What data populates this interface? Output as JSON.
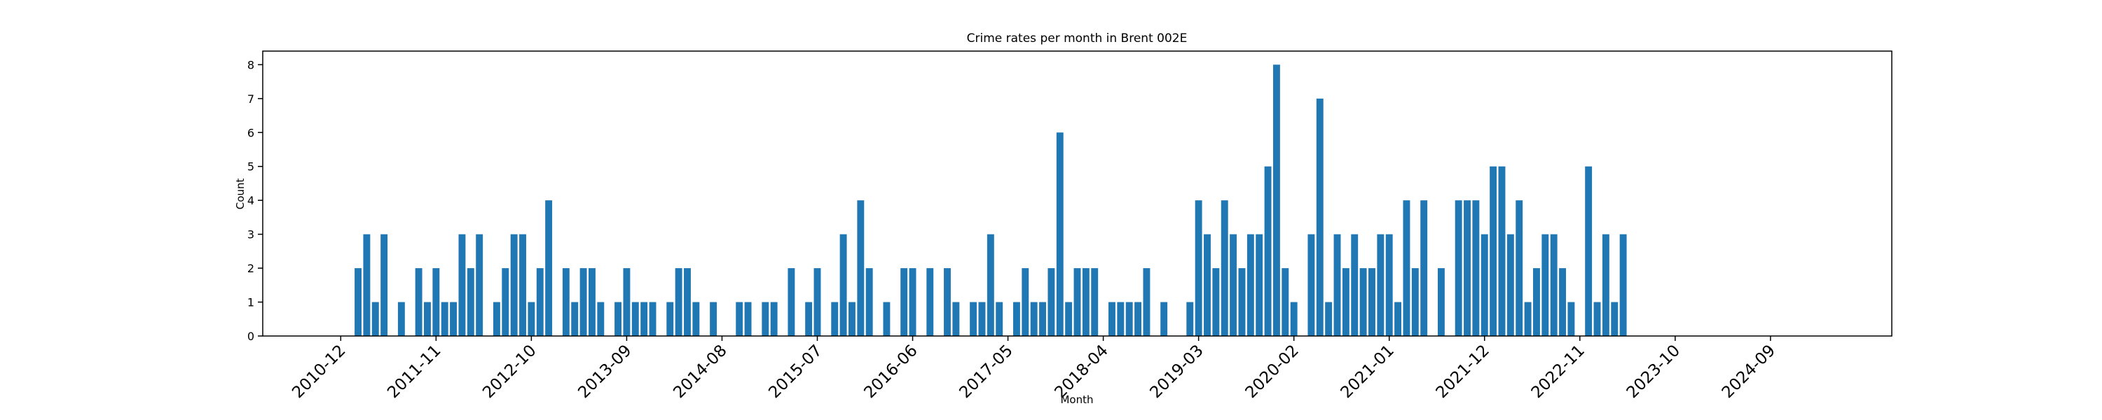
{
  "chart_data": {
    "type": "bar",
    "title": "Crime rates per month in Brent 002E",
    "x_label": "Month",
    "y_label": "Count",
    "color": "#1f77b4",
    "x": [
      "2011-02",
      "2011-03",
      "2011-04",
      "2011-05",
      "2011-07",
      "2011-09",
      "2011-10",
      "2011-11",
      "2011-12",
      "2012-01",
      "2012-02",
      "2012-03",
      "2012-04",
      "2012-06",
      "2012-07",
      "2012-08",
      "2012-09",
      "2012-10",
      "2012-11",
      "2012-12",
      "2013-02",
      "2013-03",
      "2013-04",
      "2013-05",
      "2013-06",
      "2013-08",
      "2013-09",
      "2013-10",
      "2013-11",
      "2013-12",
      "2014-02",
      "2014-03",
      "2014-04",
      "2014-05",
      "2014-07",
      "2014-10",
      "2014-11",
      "2015-01",
      "2015-02",
      "2015-04",
      "2015-06",
      "2015-07",
      "2015-09",
      "2015-10",
      "2015-11",
      "2015-12",
      "2016-01",
      "2016-03",
      "2016-05",
      "2016-06",
      "2016-08",
      "2016-10",
      "2016-11",
      "2017-01",
      "2017-02",
      "2017-03",
      "2017-04",
      "2017-06",
      "2017-07",
      "2017-08",
      "2017-09",
      "2017-10",
      "2017-11",
      "2017-12",
      "2018-01",
      "2018-02",
      "2018-03",
      "2018-05",
      "2018-06",
      "2018-07",
      "2018-08",
      "2018-09",
      "2018-11",
      "2019-02",
      "2019-03",
      "2019-04",
      "2019-05",
      "2019-06",
      "2019-07",
      "2019-08",
      "2019-09",
      "2019-10",
      "2019-11",
      "2019-12",
      "2020-01",
      "2020-02",
      "2020-04",
      "2020-05",
      "2020-06",
      "2020-07",
      "2020-08",
      "2020-09",
      "2020-10",
      "2020-11",
      "2020-12",
      "2021-01",
      "2021-02",
      "2021-03",
      "2021-04",
      "2021-05",
      "2021-07",
      "2021-09",
      "2021-10",
      "2021-11",
      "2021-12",
      "2022-01",
      "2022-02",
      "2022-03",
      "2022-04",
      "2022-05",
      "2022-06",
      "2022-07",
      "2022-08",
      "2022-09",
      "2022-10",
      "2022-12",
      "2023-01",
      "2023-02",
      "2023-03",
      "2023-04"
    ],
    "values": [
      2,
      3,
      1,
      3,
      1,
      2,
      1,
      2,
      1,
      1,
      3,
      2,
      3,
      1,
      2,
      3,
      3,
      1,
      2,
      4,
      2,
      1,
      2,
      2,
      1,
      1,
      2,
      1,
      1,
      1,
      1,
      2,
      2,
      1,
      1,
      1,
      1,
      1,
      1,
      2,
      1,
      2,
      1,
      3,
      1,
      4,
      2,
      1,
      2,
      2,
      2,
      2,
      1,
      1,
      1,
      3,
      1,
      1,
      2,
      1,
      1,
      2,
      6,
      1,
      2,
      2,
      2,
      1,
      1,
      1,
      1,
      2,
      1,
      1,
      4,
      3,
      2,
      4,
      3,
      2,
      3,
      3,
      5,
      8,
      2,
      1,
      3,
      7,
      1,
      3,
      2,
      3,
      2,
      2,
      3,
      3,
      1,
      4,
      2,
      4,
      2,
      4,
      4,
      4,
      3,
      5,
      5,
      3,
      4,
      1,
      2,
      3,
      3,
      2,
      1,
      5,
      1,
      3,
      1,
      3
    ],
    "xlim": [
      "2010-03",
      "2025-11"
    ],
    "xticks": [
      "2010-12",
      "2011-11",
      "2012-10",
      "2013-09",
      "2014-08",
      "2015-07",
      "2016-06",
      "2017-05",
      "2018-04",
      "2019-03",
      "2020-02",
      "2021-01",
      "2021-12",
      "2022-11",
      "2023-10",
      "2024-09"
    ],
    "ylim": [
      0,
      8.4
    ],
    "yticks": [
      0,
      1,
      2,
      3,
      4,
      5,
      6,
      7,
      8
    ]
  }
}
